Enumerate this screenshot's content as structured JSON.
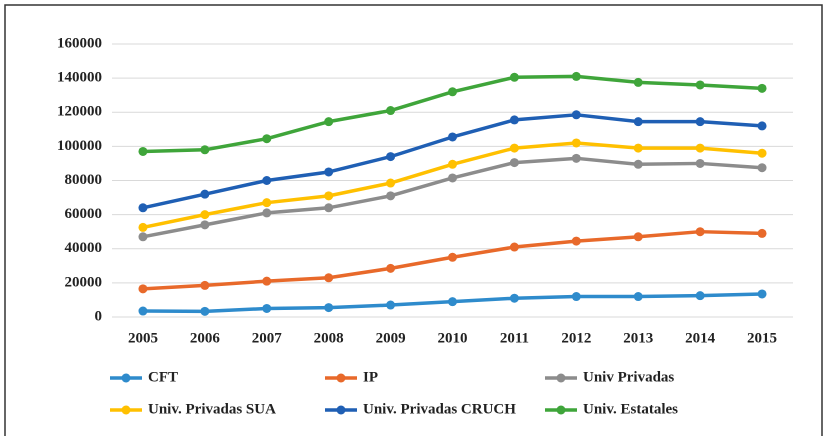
{
  "chart_data": {
    "type": "line",
    "categories": [
      "2005",
      "2006",
      "2007",
      "2008",
      "2009",
      "2010",
      "2011",
      "2012",
      "2013",
      "2014",
      "2015"
    ],
    "series": [
      {
        "name": "CFT",
        "color": "#2e8bcc",
        "values": [
          3500,
          3300,
          5000,
          5500,
          7000,
          9000,
          11000,
          12000,
          12000,
          12500,
          13500
        ]
      },
      {
        "name": "IP",
        "color": "#e8692a",
        "values": [
          16500,
          18500,
          21000,
          23000,
          28500,
          35000,
          41000,
          44500,
          47000,
          50000,
          49000
        ]
      },
      {
        "name": "Univ Privadas",
        "color": "#8c8c8c",
        "values": [
          47000,
          54000,
          61000,
          64000,
          71000,
          81500,
          90500,
          93000,
          89500,
          90000,
          87500
        ]
      },
      {
        "name": "Univ. Privadas SUA",
        "color": "#ffc000",
        "values": [
          52500,
          60000,
          67000,
          71000,
          78500,
          89500,
          99000,
          102000,
          99000,
          99000,
          96000
        ]
      },
      {
        "name": "Univ. Privadas CRUCH",
        "color": "#1f5fb4",
        "values": [
          64000,
          72000,
          80000,
          85000,
          94000,
          105500,
          115500,
          118500,
          114500,
          114500,
          112000
        ]
      },
      {
        "name": "Univ. Estatales",
        "color": "#3fa53a",
        "values": [
          97000,
          98000,
          104500,
          114500,
          121000,
          132000,
          140500,
          141000,
          137500,
          136000,
          134000
        ]
      }
    ],
    "ylim": [
      0,
      160000
    ],
    "yticks": [
      0,
      20000,
      40000,
      60000,
      80000,
      100000,
      120000,
      140000,
      160000
    ],
    "grid": true,
    "legend": "bottom"
  }
}
